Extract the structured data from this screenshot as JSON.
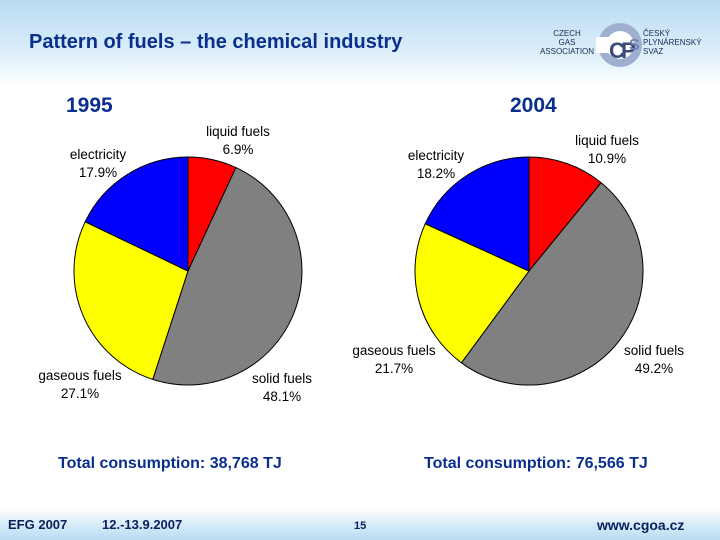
{
  "header": {
    "title": "Pattern of fuels – the chemical industry",
    "logo": {
      "left_lines": [
        "CZECH",
        "GAS",
        "ASSOCIATION"
      ],
      "right_lines": [
        "ČESKÝ",
        "PLYNÁRENSKÝ",
        "SVAZ"
      ],
      "icon": "cgoa-logo-icon",
      "colors": {
        "mark_dark": "#3a4b7a",
        "mark_light": "#9fb0cf"
      }
    }
  },
  "chart_data": [
    {
      "type": "pie",
      "title": "1995",
      "start_angle_deg": 90,
      "slices": [
        {
          "label": "liquid fuels",
          "value": 6.9,
          "value_label": "6.9%",
          "color": "#ff0000"
        },
        {
          "label": "solid fuels",
          "value": 48.1,
          "value_label": "48.1%",
          "color": "#808080"
        },
        {
          "label": "gaseous fuels",
          "value": 27.1,
          "value_label": "27.1%",
          "color": "#ffff00"
        },
        {
          "label": "electricity",
          "value": 17.9,
          "value_label": "17.9%",
          "color": "#0000ff"
        }
      ],
      "total": "Total consumption: 38,768 TJ"
    },
    {
      "type": "pie",
      "title": "2004",
      "start_angle_deg": 90,
      "slices": [
        {
          "label": "liquid fuels",
          "value": 10.9,
          "value_label": "10.9%",
          "color": "#ff0000"
        },
        {
          "label": "solid fuels",
          "value": 49.2,
          "value_label": "49.2%",
          "color": "#808080"
        },
        {
          "label": "gaseous fuels",
          "value": 21.7,
          "value_label": "21.7%",
          "color": "#ffff00"
        },
        {
          "label": "electricity",
          "value": 18.2,
          "value_label": "18.2%",
          "color": "#0000ff"
        }
      ],
      "total": "Total consumption: 76,566 TJ"
    }
  ],
  "footer": {
    "event": "EFG 2007",
    "dates": "12.-13.9.2007",
    "page": "15",
    "url": "www.cgoa.cz"
  }
}
